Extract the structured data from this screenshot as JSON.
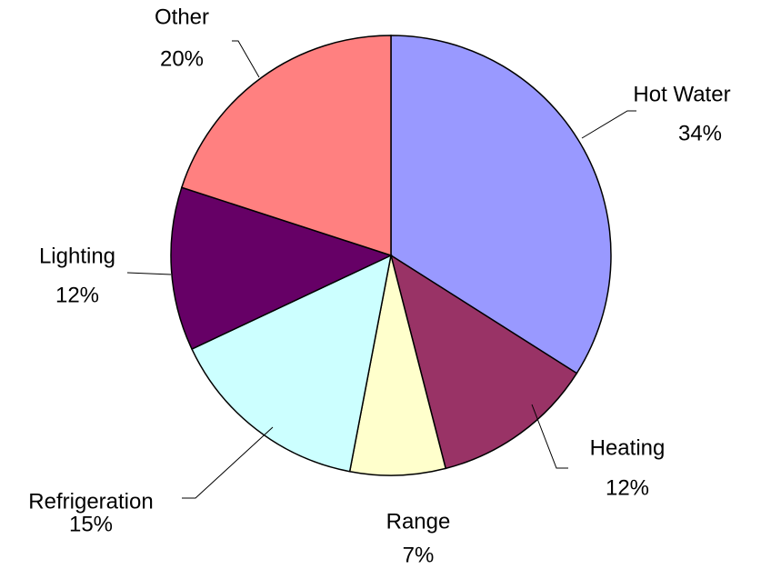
{
  "chart_data": {
    "type": "pie",
    "categories": [
      "Hot Water",
      "Heating",
      "Range",
      "Refrigeration",
      "Lighting",
      "Other"
    ],
    "values": [
      34,
      12,
      7,
      15,
      12,
      20
    ],
    "value_labels": [
      "34%",
      "12%",
      "7%",
      "15%",
      "12%",
      "20%"
    ],
    "colors": [
      "#9999ff",
      "#993366",
      "#ffffcc",
      "#ccffff",
      "#660066",
      "#ff8080"
    ]
  }
}
